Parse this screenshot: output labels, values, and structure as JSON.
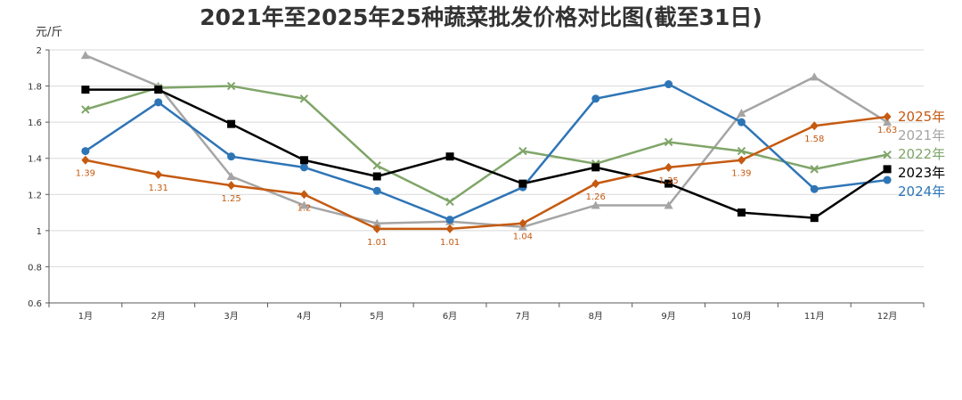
{
  "chart_data": {
    "type": "line",
    "title": "2021年至2025年25种蔬菜批发价格对比图(截至31日)",
    "ylabel": "元/斤",
    "xlabel": "",
    "ylim": [
      0.6,
      2.0
    ],
    "yticks": [
      "0.6",
      "0.8",
      "1",
      "1.2",
      "1.4",
      "1.6",
      "1.8",
      "2"
    ],
    "categories": [
      "1月",
      "2月",
      "3月",
      "4月",
      "5月",
      "6月",
      "7月",
      "8月",
      "9月",
      "10月",
      "11月",
      "12月"
    ],
    "grid": true,
    "legend_position": "right",
    "series": [
      {
        "name": "2021年",
        "color": "#a5a5a5",
        "marker": "triangle",
        "values": [
          1.97,
          1.8,
          1.3,
          1.14,
          1.04,
          1.05,
          1.02,
          1.14,
          1.14,
          1.65,
          1.85,
          1.6
        ]
      },
      {
        "name": "2022年",
        "color": "#7fa568",
        "marker": "x",
        "values": [
          1.67,
          1.79,
          1.8,
          1.73,
          1.36,
          1.16,
          1.44,
          1.37,
          1.49,
          1.44,
          1.34,
          1.42
        ]
      },
      {
        "name": "2024年",
        "color": "#2e75b6",
        "marker": "circle",
        "values": [
          1.44,
          1.71,
          1.41,
          1.35,
          1.22,
          1.06,
          1.24,
          1.73,
          1.81,
          1.6,
          1.23,
          1.28
        ]
      },
      {
        "name": "2023年",
        "color": "#000000",
        "marker": "square",
        "values": [
          1.78,
          1.78,
          1.59,
          1.39,
          1.3,
          1.41,
          1.26,
          1.35,
          1.26,
          1.1,
          1.07,
          1.34
        ]
      },
      {
        "name": "2025年",
        "color": "#c55a11",
        "marker": "diamond",
        "values": [
          1.39,
          1.31,
          1.25,
          1.2,
          1.01,
          1.01,
          1.04,
          1.26,
          1.35,
          1.39,
          1.58,
          1.63
        ],
        "data_labels": [
          "1.39",
          "1.31",
          "1.25",
          "1.2",
          "1.01",
          "1.01",
          "1.04",
          "1.26",
          "1.35",
          "1.39",
          "1.58",
          "1.63"
        ]
      }
    ],
    "legend_order": [
      "2025年",
      "2021年",
      "2022年",
      "2023年",
      "2024年"
    ]
  }
}
